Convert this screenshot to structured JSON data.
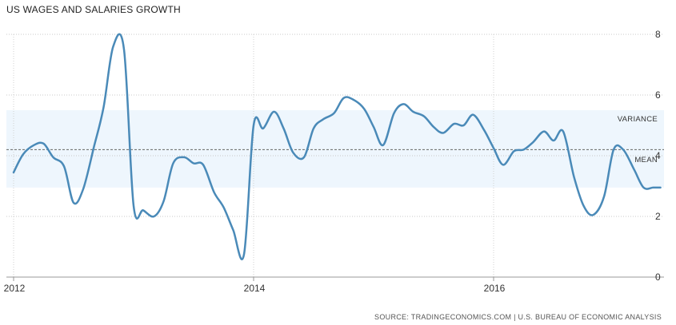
{
  "chart_data": {
    "type": "line",
    "title": "US WAGES AND SALARIES GROWTH",
    "source": "SOURCE: TRADINGECONOMICS.COM | U.S. BUREAU OF ECONOMIC ANALYSIS",
    "xlabel": "",
    "ylabel": "",
    "x_ticks": [
      "2012",
      "2014",
      "2016"
    ],
    "y_ticks": [
      "0",
      "2",
      "4",
      "6",
      "8"
    ],
    "xlim": [
      2012.0,
      2017.39
    ],
    "ylim": [
      0,
      8
    ],
    "grid": true,
    "mean": 4.2,
    "mean_label": "MEAN",
    "variance_range": [
      2.95,
      5.5
    ],
    "variance_label": "VARIANCE",
    "line_color": "#4a8ab8",
    "band_color": "#eef6fd",
    "series": [
      {
        "x": [
          2012.0,
          2012.08,
          2012.17,
          2012.25,
          2012.33,
          2012.42,
          2012.5,
          2012.58,
          2012.67,
          2012.75,
          2012.83,
          2012.92,
          2013.0,
          2013.08,
          2013.17,
          2013.25,
          2013.33,
          2013.42,
          2013.5,
          2013.58,
          2013.67,
          2013.75,
          2013.83,
          2013.92,
          2014.0,
          2014.08,
          2014.17,
          2014.25,
          2014.33,
          2014.42,
          2014.5,
          2014.58,
          2014.67,
          2014.75,
          2014.83,
          2014.92,
          2015.0,
          2015.08,
          2015.17,
          2015.25,
          2015.33,
          2015.42,
          2015.5,
          2015.58,
          2015.67,
          2015.75,
          2015.83,
          2015.92,
          2016.0,
          2016.08,
          2016.17,
          2016.25,
          2016.33,
          2016.42,
          2016.5,
          2016.58,
          2016.67,
          2016.75,
          2016.83,
          2016.92,
          2017.0,
          2017.08,
          2017.17,
          2017.25,
          2017.33,
          2017.39
        ],
        "values": [
          3.45,
          4.05,
          4.35,
          4.4,
          3.95,
          3.65,
          2.45,
          2.9,
          4.3,
          5.6,
          7.6,
          7.5,
          2.35,
          2.2,
          2.0,
          2.5,
          3.75,
          3.95,
          3.75,
          3.7,
          2.8,
          2.3,
          1.55,
          0.75,
          5.0,
          4.9,
          5.45,
          4.9,
          4.1,
          3.95,
          4.9,
          5.2,
          5.4,
          5.9,
          5.85,
          5.55,
          4.95,
          4.35,
          5.4,
          5.7,
          5.45,
          5.3,
          4.95,
          4.75,
          5.05,
          5.0,
          5.35,
          4.85,
          4.25,
          3.7,
          4.15,
          4.2,
          4.45,
          4.8,
          4.5,
          4.8,
          3.3,
          2.35,
          2.05,
          2.65,
          4.2,
          4.2,
          3.55,
          2.95,
          2.95,
          2.95
        ]
      }
    ]
  }
}
